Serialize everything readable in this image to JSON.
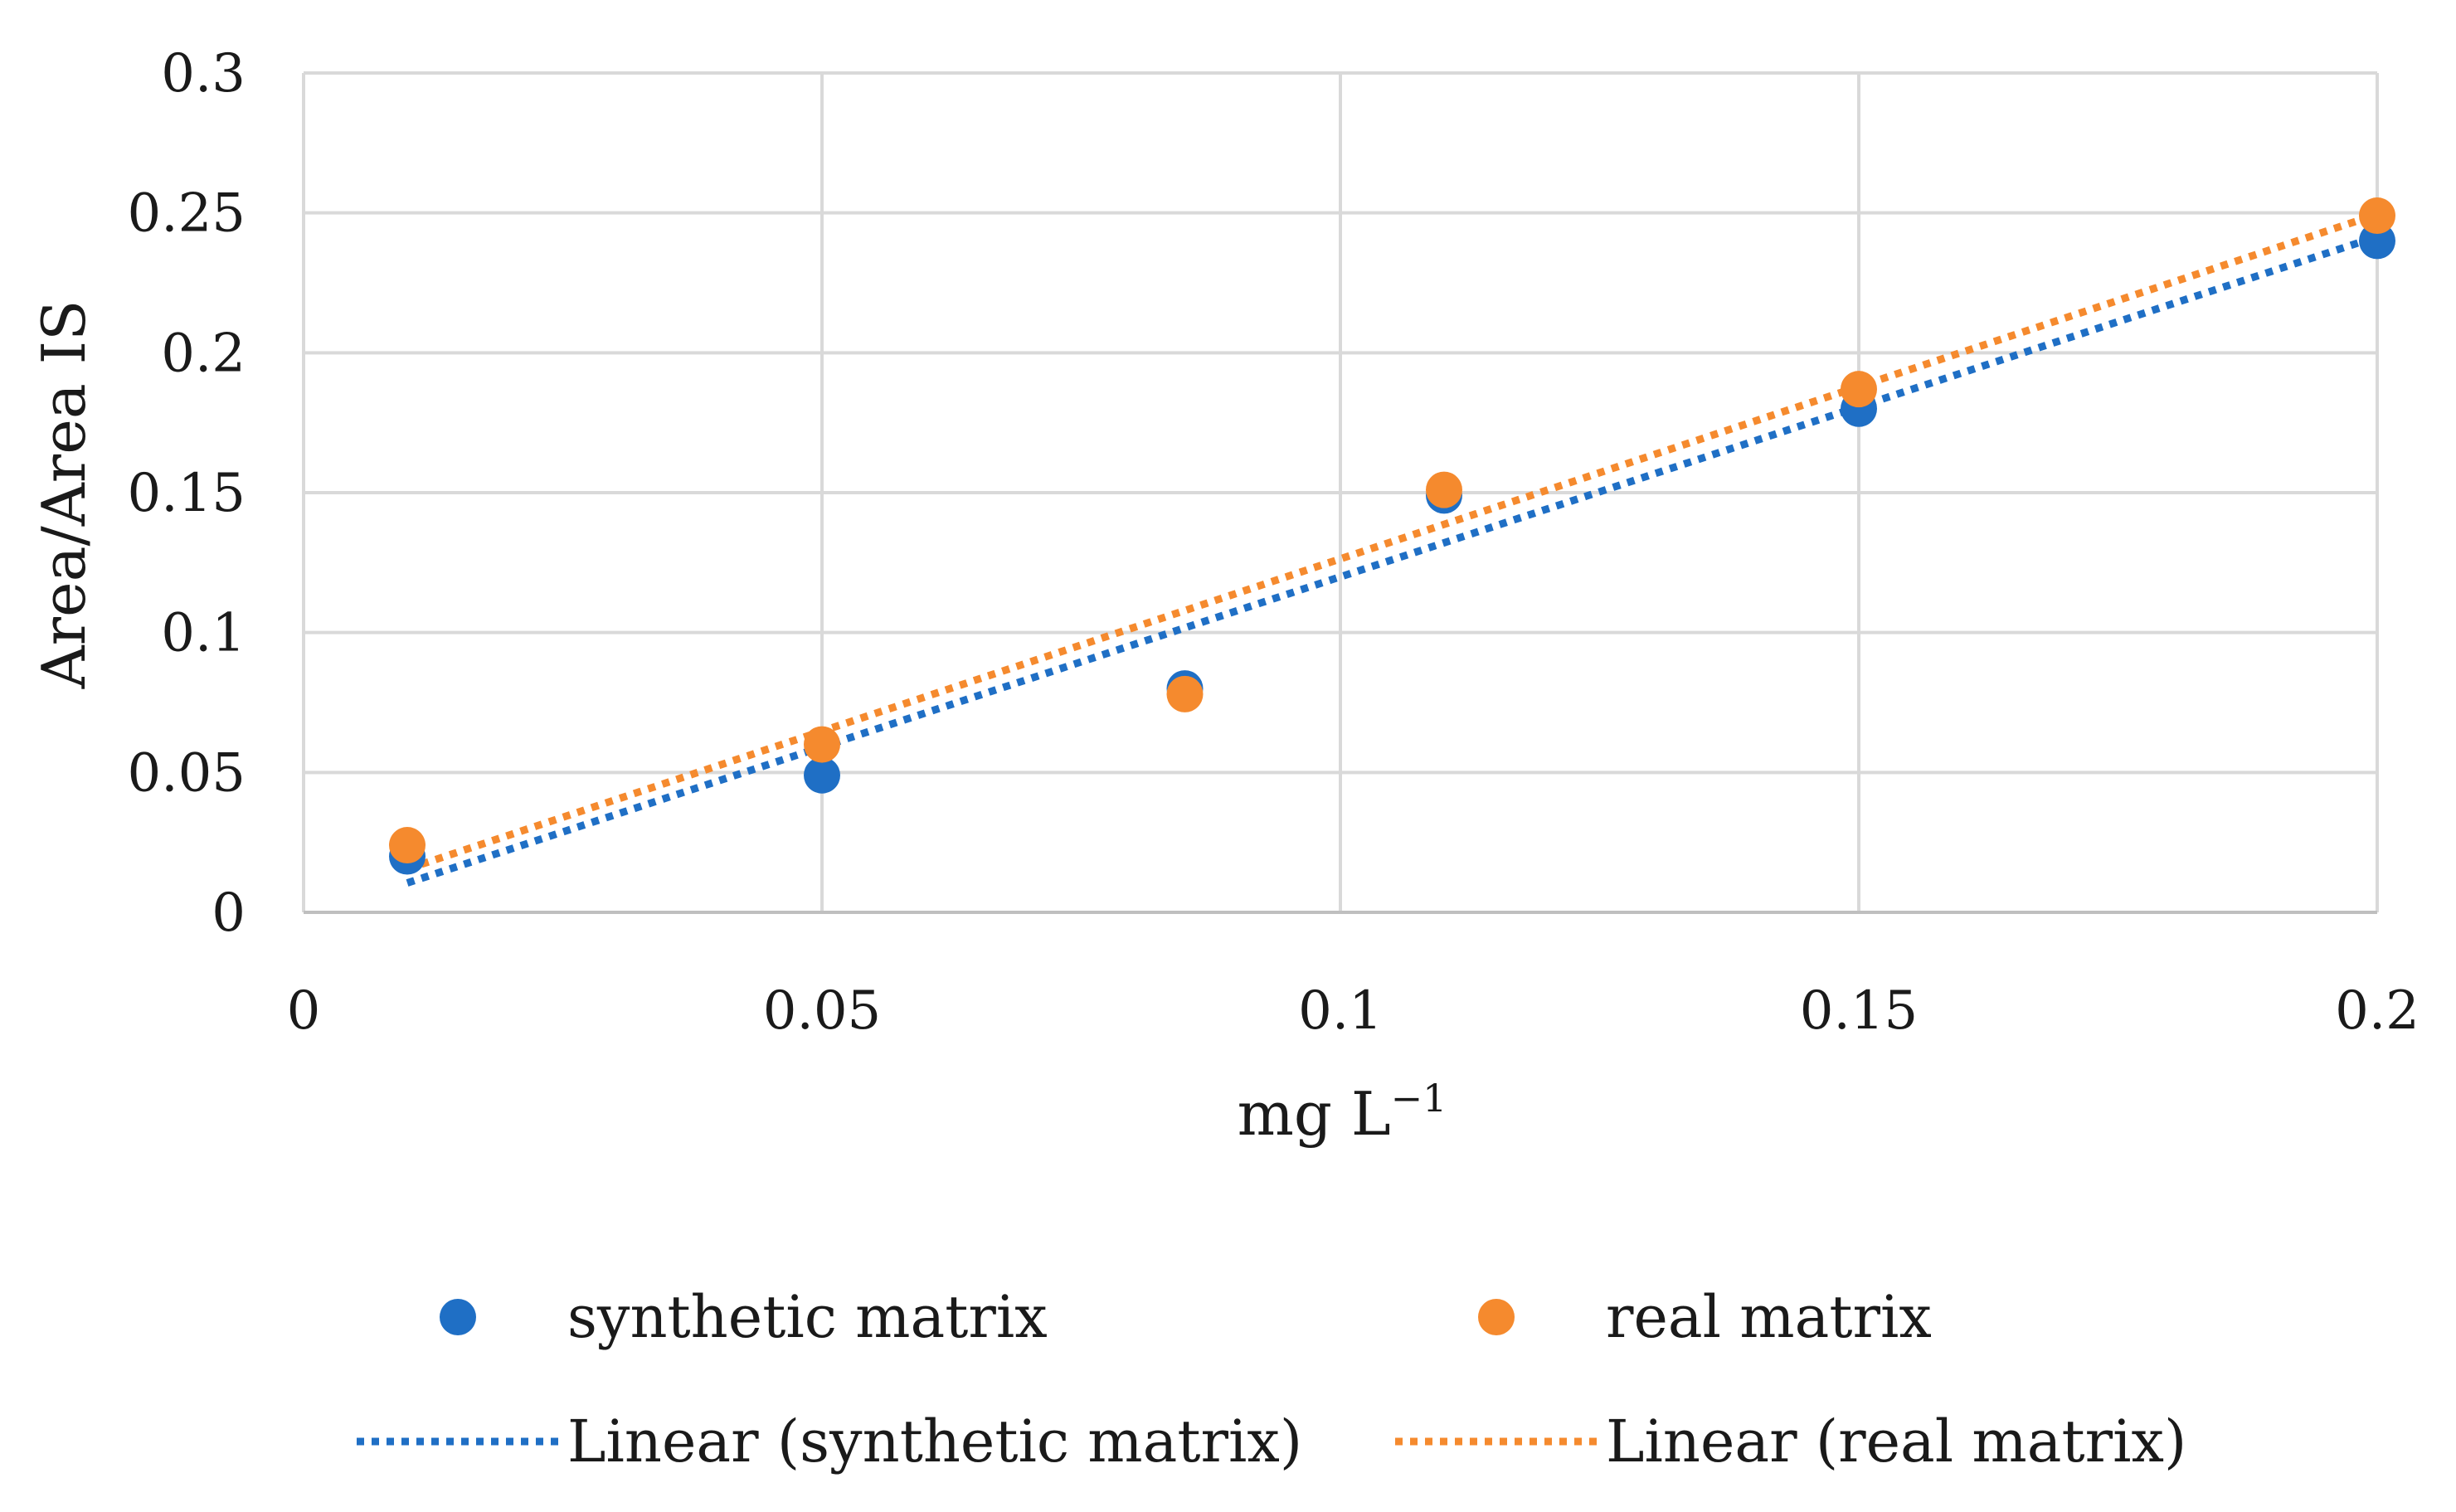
{
  "chart_data": {
    "type": "scatter",
    "title": "",
    "xlabel": "mg L",
    "xlabel_superscript": "−1",
    "ylabel": "Area/Area IS",
    "xlim": [
      0,
      0.2
    ],
    "ylim": [
      0,
      0.3
    ],
    "x_ticks": [
      "0",
      "0.05",
      "0.1",
      "0.15",
      "0.2"
    ],
    "y_ticks": [
      "0",
      "0.05",
      "0.1",
      "0.15",
      "0.2",
      "0.25",
      "0.3"
    ],
    "grid": true,
    "legend_position": "bottom",
    "series": [
      {
        "name": "synthetic matrix",
        "color": "#1F6FC5",
        "x": [
          0.01,
          0.05,
          0.085,
          0.11,
          0.15,
          0.2
        ],
        "y": [
          0.02,
          0.049,
          0.08,
          0.149,
          0.18,
          0.24
        ]
      },
      {
        "name": "real matrix",
        "color": "#F58A2E",
        "x": [
          0.01,
          0.05,
          0.085,
          0.11,
          0.15,
          0.2
        ],
        "y": [
          0.024,
          0.06,
          0.078,
          0.151,
          0.187,
          0.249
        ]
      }
    ],
    "trendlines": [
      {
        "name": "Linear (synthetic matrix)",
        "color": "#1F6FC5",
        "x": [
          0.01,
          0.2
        ],
        "y": [
          0.0105,
          0.2415
        ]
      },
      {
        "name": "Linear (real matrix)",
        "color": "#F58A2E",
        "x": [
          0.01,
          0.2
        ],
        "y": [
          0.0155,
          0.2495
        ]
      }
    ]
  }
}
